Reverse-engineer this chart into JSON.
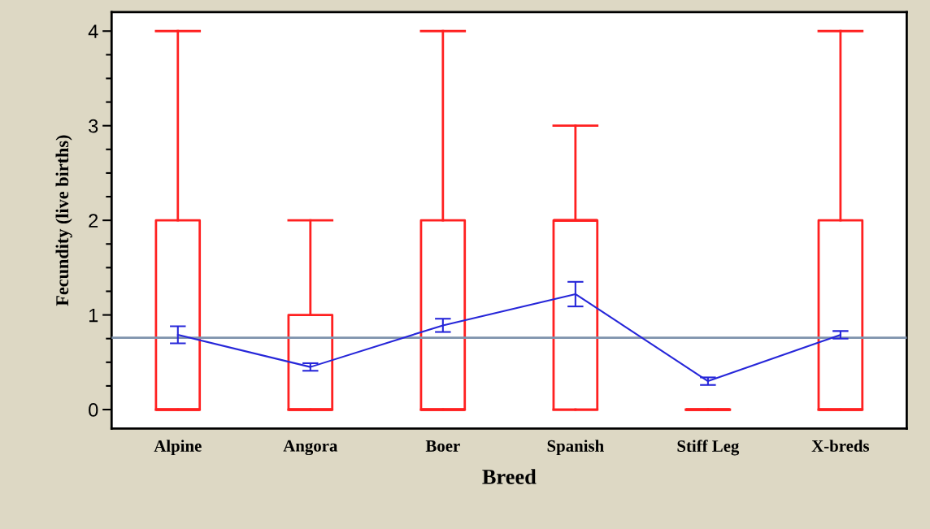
{
  "chart_data": {
    "type": "box",
    "xlabel": "Breed",
    "ylabel": "Fecundity (live births)",
    "categories": [
      "Alpine",
      "Angora",
      "Boer",
      "Spanish",
      "Stiff Leg",
      "X-breds"
    ],
    "ylim": [
      -0.2,
      4.2
    ],
    "yticks": [
      0,
      1,
      2,
      3,
      4
    ],
    "grid": false,
    "marker": "none",
    "series": [
      {
        "color": "#ff2020",
        "boxes": [
          {
            "low": 0,
            "q1": 0,
            "median": 0,
            "q3": 2,
            "high": 4
          },
          {
            "low": 0,
            "q1": 0,
            "median": 0,
            "q3": 1,
            "high": 2
          },
          {
            "low": 0,
            "q1": 0,
            "median": 0,
            "q3": 2,
            "high": 4
          },
          {
            "low": 0,
            "q1": 0,
            "median": 2,
            "q3": 2,
            "high": 3
          },
          {
            "low": 0,
            "q1": 0,
            "median": 0,
            "q3": 0,
            "high": 0
          },
          {
            "low": 0,
            "q1": 0,
            "median": 0,
            "q3": 2,
            "high": 4
          }
        ]
      },
      {
        "type": "line",
        "color": "#2626d9",
        "values": [
          0.79,
          0.45,
          0.89,
          1.22,
          0.3,
          0.79
        ],
        "errors": [
          0.09,
          0.04,
          0.07,
          0.13,
          0.04,
          0.04
        ]
      }
    ],
    "ref_lines": [
      {
        "axis": "y",
        "value": 0.76,
        "color": "#7f93ad"
      }
    ]
  }
}
